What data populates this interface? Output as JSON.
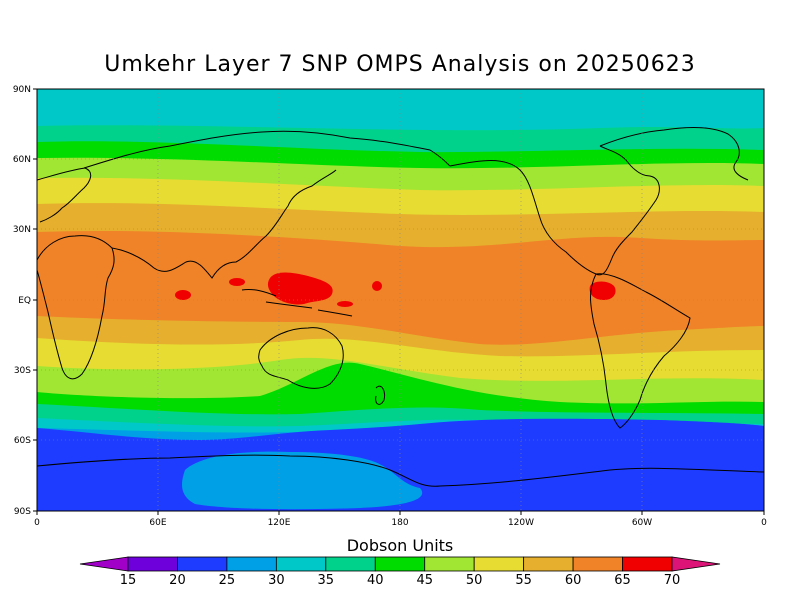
{
  "title": "Umkehr Layer 7 SNP OMPS Analysis on 20250623",
  "map": {
    "lat_ticks": [
      "90N",
      "60N",
      "30N",
      "EQ",
      "30S",
      "60S",
      "90S"
    ],
    "lon_ticks": [
      "0",
      "60E",
      "120E",
      "180",
      "120W",
      "60W",
      "0"
    ],
    "grid": "dotted"
  },
  "colorbar": {
    "title": "Dobson Units",
    "levels": [
      "15",
      "20",
      "25",
      "30",
      "35",
      "40",
      "45",
      "50",
      "55",
      "60",
      "65",
      "70"
    ],
    "colors": [
      "#a000c8",
      "#6e00dc",
      "#1e3cff",
      "#00a0e6",
      "#00c8c8",
      "#00d28c",
      "#00dc00",
      "#a0e632",
      "#e6dc32",
      "#e6af2d",
      "#f08228",
      "#f00000",
      "#dc1478"
    ]
  },
  "chart_data": {
    "type": "heatmap",
    "title": "Umkehr Layer 7 SNP OMPS Analysis on 20250623",
    "x_range": [
      "0",
      "0"
    ],
    "y_range": [
      "90S",
      "90N"
    ],
    "units": "Dobson Units",
    "zonal_bands_DU": [
      {
        "lat": "90N-70N",
        "value": 33
      },
      {
        "lat": "70N-65N",
        "value": 38
      },
      {
        "lat": "65N-60N",
        "value": 43
      },
      {
        "lat": "60N-50N",
        "value": 48
      },
      {
        "lat": "50N-40N",
        "value": 52
      },
      {
        "lat": "40N-30N",
        "value": 57
      },
      {
        "lat": "30N-15S",
        "value": 63
      },
      {
        "lat": "15S-25S",
        "value": 57
      },
      {
        "lat": "25S-32S",
        "value": 53
      },
      {
        "lat": "32S-38S",
        "value": 48
      },
      {
        "lat": "38S-45S",
        "value": 43
      },
      {
        "lat": "45S-52S",
        "value": 37
      },
      {
        "lat": "52S-58S",
        "value": 32
      },
      {
        "lat": "58S-90S",
        "value": 23
      }
    ],
    "highlights": [
      {
        "region": "Western Pacific / Maritime Continent",
        "value": 67
      },
      {
        "region": "Northern South America",
        "value": 67
      },
      {
        "region": "Antarctica",
        "value": 28
      }
    ]
  }
}
